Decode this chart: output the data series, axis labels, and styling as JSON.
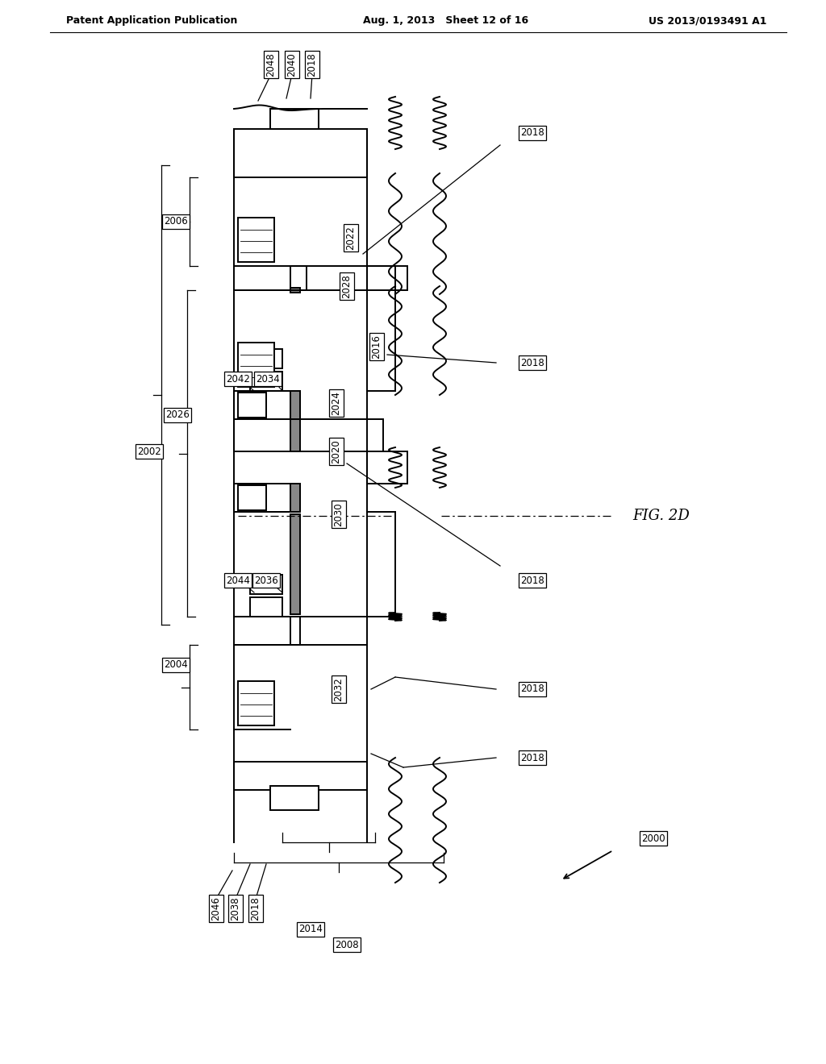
{
  "title_left": "Patent Application Publication",
  "title_mid": "Aug. 1, 2013   Sheet 12 of 16",
  "title_right": "US 2013/0193491 A1",
  "fig_label": "FIG. 2D",
  "bg_color": "#ffffff",
  "line_color": "#000000",
  "label_fontsize": 8.5,
  "header_fontsize": 9.0,
  "lw_main": 1.4,
  "lw_thin": 0.9
}
